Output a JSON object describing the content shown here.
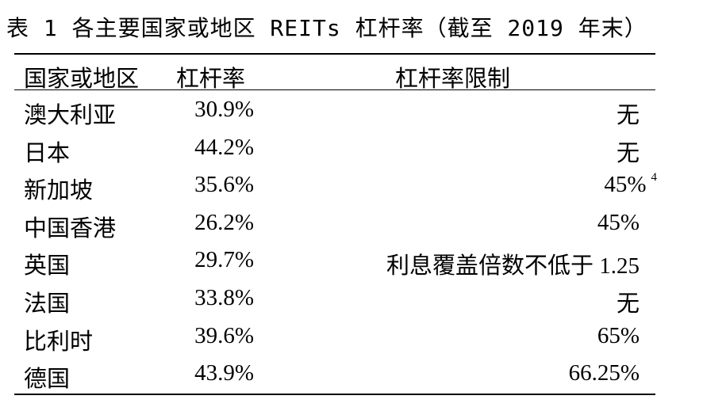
{
  "title": "表 1 各主要国家或地区 REITs 杠杆率（截至 2019 年末）",
  "table": {
    "headers": [
      "国家或地区",
      "杠杆率",
      "杠杆率限制"
    ],
    "rows": [
      {
        "region": "澳大利亚",
        "leverage": "30.9%",
        "limit": "无",
        "note": ""
      },
      {
        "region": "日本",
        "leverage": "44.2%",
        "limit": "无",
        "note": ""
      },
      {
        "region": "新加坡",
        "leverage": "35.6%",
        "limit": "45%",
        "note": "4"
      },
      {
        "region": "中国香港",
        "leverage": "26.2%",
        "limit": "45%",
        "note": ""
      },
      {
        "region": "英国",
        "leverage": "29.7%",
        "limit": "利息覆盖倍数不低于 1.25",
        "note": ""
      },
      {
        "region": "法国",
        "leverage": "33.8%",
        "limit": "无",
        "note": ""
      },
      {
        "region": "比利时",
        "leverage": "39.6%",
        "limit": "65%",
        "note": ""
      },
      {
        "region": "德国",
        "leverage": "43.9%",
        "limit": "66.25%",
        "note": ""
      }
    ]
  }
}
